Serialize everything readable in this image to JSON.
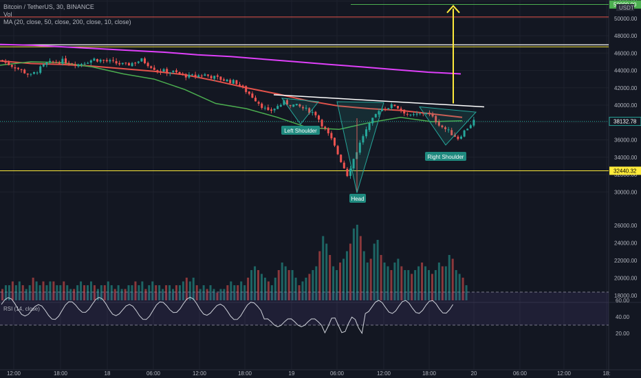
{
  "header": {
    "symbol": "Bitcoin / TetherUS, 30, BINANCE",
    "vol": "Vol",
    "ma": "MA (20, close, 50, close, 200, close, 10, close)"
  },
  "rsi_header": "RSI (14, close)",
  "currency_badge": "USDT",
  "colors": {
    "bg": "#131722",
    "up": "#26a69a",
    "down": "#ef5350",
    "ma20": "#4caf50",
    "ma50": "#e5534b",
    "ma200": "#e040fb",
    "yellow": "#ffeb3b",
    "annotation": "#1f8a7f"
  },
  "chart_data": [
    {
      "type": "candlestick",
      "title": "Bitcoin / TetherUS, 30, BINANCE",
      "ylim": [
        29000,
        52500
      ],
      "y_ticks": [
        30000,
        32000,
        34000,
        36000,
        38000,
        40000,
        42000,
        44000,
        46000,
        48000,
        50000,
        52000
      ],
      "x_ticks": [
        "12:00",
        "18:00",
        "18",
        "06:00",
        "12:00",
        "18:00",
        "19",
        "06:00",
        "12:00",
        "18:00",
        "20",
        "06:00",
        "12:00",
        "18:"
      ],
      "last_price": "38132.78",
      "price_labels": [
        "32440.32",
        "50000.00"
      ],
      "ohlc_anchors": [
        [
          45200,
          44400
        ],
        [
          44400,
          43400
        ],
        [
          43400,
          44800
        ],
        [
          44800,
          45100
        ],
        [
          45100,
          44700
        ],
        [
          44700,
          45300
        ],
        [
          45300,
          45000
        ],
        [
          45000,
          44600
        ],
        [
          44600,
          45200
        ],
        [
          45200,
          44000
        ],
        [
          44000,
          43800
        ],
        [
          43800,
          43300
        ],
        [
          43300,
          43500
        ],
        [
          43500,
          43000
        ],
        [
          43000,
          42600
        ],
        [
          42600,
          41000
        ],
        [
          41000,
          39200
        ],
        [
          39200,
          40300
        ],
        [
          40300,
          39800
        ],
        [
          39800,
          39000
        ],
        [
          39000,
          36000
        ],
        [
          36000,
          32000
        ],
        [
          32000,
          36500
        ],
        [
          36500,
          39500
        ],
        [
          39500,
          40000
        ],
        [
          40000,
          38700
        ],
        [
          38700,
          39200
        ],
        [
          39200,
          37500
        ],
        [
          37500,
          36200
        ],
        [
          36200,
          38200
        ]
      ],
      "ma_series": [
        {
          "name": "MA 20",
          "values": [
            44600,
            45000,
            44900,
            44400,
            43600,
            43000,
            41800,
            40200,
            39600,
            38600,
            37400,
            37200,
            38000,
            38600,
            38100,
            38200
          ]
        },
        {
          "name": "MA 50",
          "values": [
            45100,
            44800,
            44700,
            44500,
            44200,
            43900,
            43500,
            42800,
            42000,
            41300,
            40500,
            39900,
            39600,
            39400,
            39000,
            38600
          ]
        },
        {
          "name": "MA 200",
          "values": [
            47000,
            46900,
            46700,
            46500,
            46300,
            46100,
            45800,
            45600,
            45300,
            45000,
            44700,
            44400,
            44100,
            43800,
            43600
          ]
        }
      ],
      "annotations": [
        "Left Shoulder",
        "Head",
        "Right Shoulder"
      ]
    },
    {
      "type": "bar",
      "title": "Vol",
      "values": [
        3,
        4,
        4,
        5,
        4,
        5,
        4,
        3,
        4,
        6,
        5,
        4,
        5,
        4,
        5,
        5,
        4,
        4,
        5,
        4,
        3,
        3,
        4,
        5,
        4,
        4,
        5,
        4,
        3,
        4,
        4,
        5,
        4,
        3,
        4,
        3,
        3,
        4,
        4,
        5,
        4,
        5,
        3,
        4,
        5,
        4,
        4,
        3,
        4,
        4,
        3,
        4,
        4,
        5,
        6,
        5,
        6,
        4,
        3,
        4,
        3,
        4,
        3,
        2,
        3,
        3,
        4,
        5,
        4,
        4,
        5,
        4,
        6,
        8,
        9,
        8,
        7,
        6,
        5,
        4,
        6,
        8,
        10,
        9,
        8,
        8,
        6,
        4,
        5,
        6,
        7,
        8,
        9,
        13,
        17,
        15,
        12,
        9,
        8,
        10,
        11,
        13,
        15,
        19,
        20,
        17,
        13,
        10,
        11,
        15,
        16,
        12,
        10,
        9,
        8,
        10,
        11,
        9,
        8,
        8,
        7,
        8,
        9,
        10,
        9,
        8,
        7,
        8,
        10,
        9,
        9,
        12,
        11,
        8,
        7,
        6,
        4
      ]
    },
    {
      "type": "line",
      "title": "RSI (14, close)",
      "ylim": [
        15,
        72
      ],
      "y_ticks": [
        20,
        40,
        60
      ],
      "bands": [
        30,
        70
      ]
    }
  ]
}
